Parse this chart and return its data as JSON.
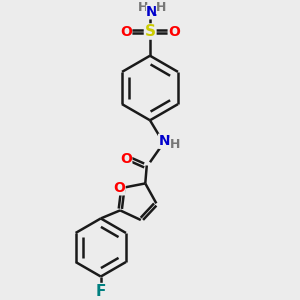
{
  "bg_color": "#ececec",
  "bond_color": "#1a1a1a",
  "bond_width": 1.8,
  "atom_colors": {
    "O": "#ff0000",
    "N": "#0000cc",
    "S": "#cccc00",
    "F": "#008080",
    "H": "#777777",
    "C": "#1a1a1a"
  },
  "font_size": 10,
  "fig_size": [
    3.0,
    3.0
  ],
  "dpi": 100
}
